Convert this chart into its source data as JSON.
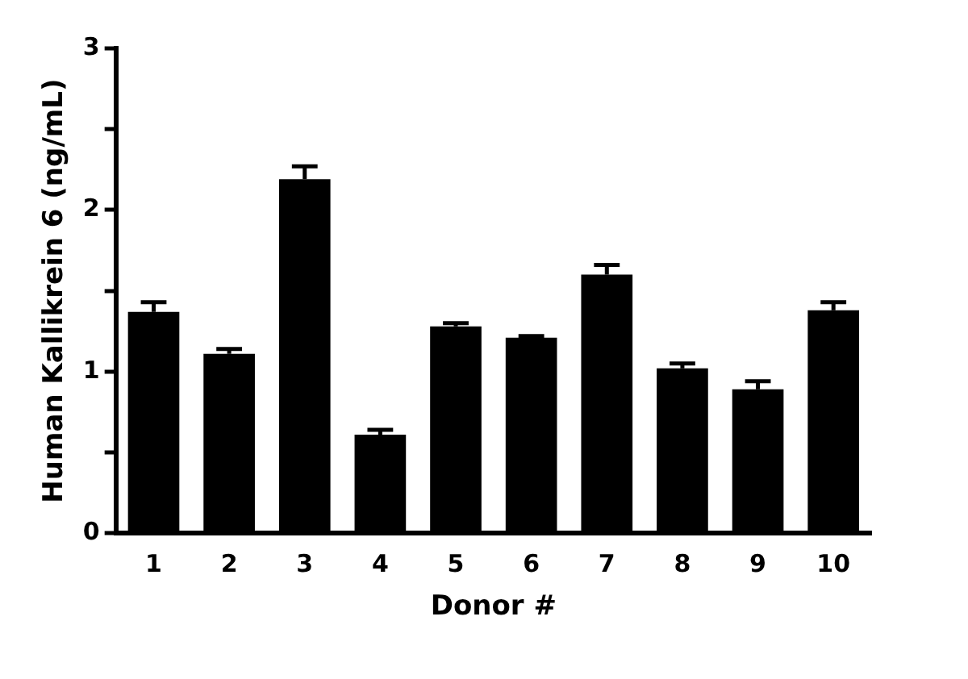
{
  "chart_data": {
    "type": "bar",
    "xlabel": "Donor #",
    "ylabel": "Human Kallikrein 6 (ng/mL)",
    "categories": [
      "1",
      "2",
      "3",
      "4",
      "5",
      "6",
      "7",
      "8",
      "9",
      "10"
    ],
    "values": [
      1.37,
      1.11,
      2.19,
      0.61,
      1.28,
      1.21,
      1.6,
      1.02,
      0.89,
      1.38
    ],
    "errors": [
      [
        1.37,
        1.43
      ],
      [
        1.11,
        1.14
      ],
      [
        2.19,
        2.27
      ],
      [
        0.61,
        0.64
      ],
      [
        1.28,
        1.3
      ],
      [
        1.21,
        1.22
      ],
      [
        1.6,
        1.66
      ],
      [
        1.02,
        1.05
      ],
      [
        0.89,
        0.94
      ],
      [
        1.38,
        1.43
      ]
    ],
    "color": "#000000",
    "ylim": [
      0,
      3
    ],
    "yticks": [
      0,
      {
        "value": 0.5,
        "label": null
      },
      1,
      {
        "value": 1.5,
        "label": null
      },
      2,
      {
        "value": 2.5,
        "label": null
      },
      3
    ],
    "grid": false,
    "legend": false
  }
}
